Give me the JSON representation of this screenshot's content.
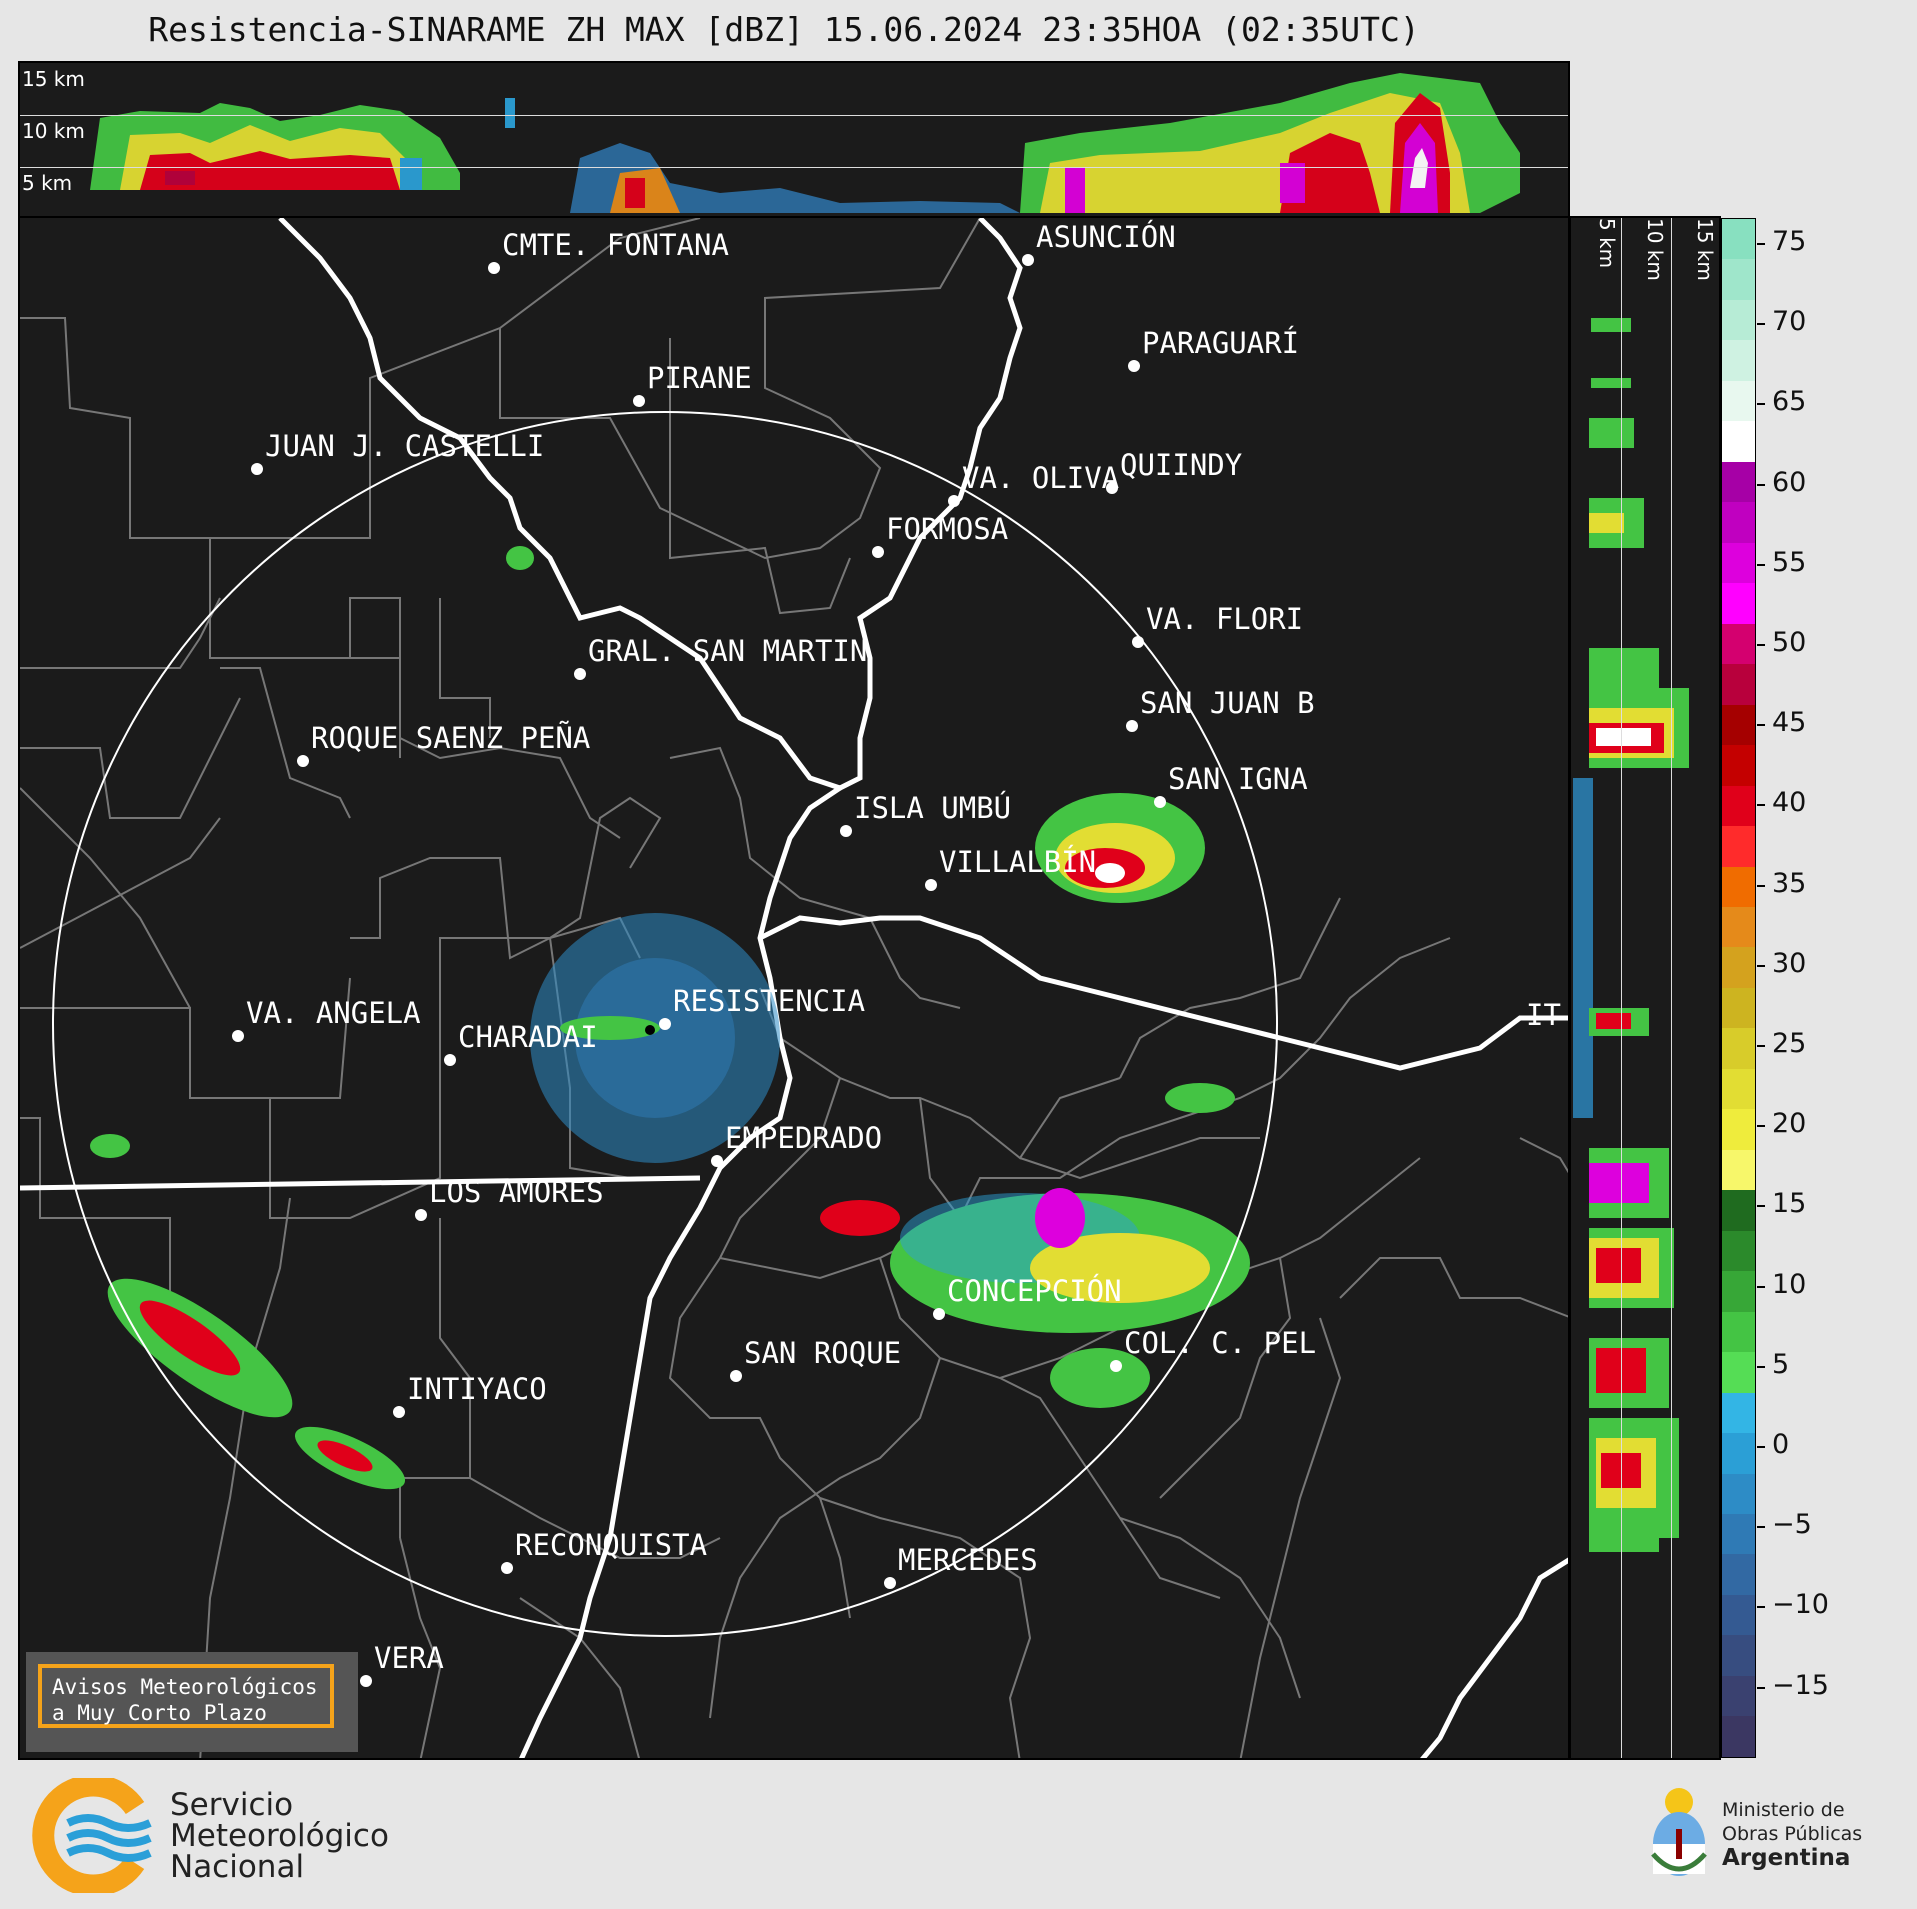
{
  "title": "Resistencia-SINARAME ZH MAX [dBZ] 15.06.2024 23:35HOA (02:35UTC)",
  "top_panel": {
    "height_labels": [
      "15 km",
      "10 km",
      "5 km"
    ]
  },
  "side_panel": {
    "height_labels": [
      "5 km",
      "10 km",
      "15 km"
    ]
  },
  "colorbar": {
    "unit": "dBZ",
    "ticks": [
      "75",
      "70",
      "65",
      "60",
      "55",
      "50",
      "45",
      "40",
      "35",
      "30",
      "25",
      "20",
      "15",
      "10",
      "5",
      "0",
      "−5",
      "−10",
      "−15"
    ],
    "colors_top_to_bottom": [
      "#88e0c0",
      "#9fe6cb",
      "#b7ecd6",
      "#cff2e2",
      "#e8f8ef",
      "#ffffff",
      "#a600a6",
      "#c000c0",
      "#dd00dd",
      "#ff00ff",
      "#d4006f",
      "#b8003c",
      "#a50000",
      "#c40000",
      "#e0001a",
      "#ff2b2b",
      "#f06c00",
      "#e58a1a",
      "#d4a21e",
      "#cdb420",
      "#d8cc2a",
      "#e2dd33",
      "#efec3c",
      "#f7f76a",
      "#1f6b1f",
      "#2b8a2b",
      "#37a737",
      "#44c444",
      "#55dd55",
      "#33b5e5",
      "#2b9fd6",
      "#2d8cc6",
      "#2f7ab5",
      "#3269a3",
      "#345a92",
      "#374d80",
      "#3a4170",
      "#3b3762"
    ]
  },
  "cities": [
    {
      "name": "CMTE. FONTANA"
    },
    {
      "name": "ASUNCIÓN"
    },
    {
      "name": "PIRANE"
    },
    {
      "name": "PARAGUARÍ"
    },
    {
      "name": "JUAN J. CASTELLI"
    },
    {
      "name": "VA. OLIVA"
    },
    {
      "name": "QUIINDY"
    },
    {
      "name": "FORMOSA"
    },
    {
      "name": "VA. FLORI"
    },
    {
      "name": "GRAL. SAN MARTIN"
    },
    {
      "name": "SAN JUAN B"
    },
    {
      "name": "ROQUE SAENZ PEÑA"
    },
    {
      "name": "SAN IGNA"
    },
    {
      "name": "ISLA UMBÚ"
    },
    {
      "name": "VILLALBÍN"
    },
    {
      "name": "RESISTENCIA"
    },
    {
      "name": "IT"
    },
    {
      "name": "VA. ANGELA"
    },
    {
      "name": "CHARADAI"
    },
    {
      "name": "EMPEDRADO"
    },
    {
      "name": "LOS AMORES"
    },
    {
      "name": "CONCEPCIÓN"
    },
    {
      "name": "SAN ROQUE"
    },
    {
      "name": "COL. C. PEL"
    },
    {
      "name": "INTIYACO"
    },
    {
      "name": "RECONQUISTA"
    },
    {
      "name": "MERCEDES"
    },
    {
      "name": "VERA"
    }
  ],
  "notice": {
    "line1": "Avisos Meteorológicos",
    "line2": "a Muy Corto Plazo"
  },
  "footer": {
    "smn": {
      "line1": "Servicio",
      "line2": "Meteorológico",
      "line3": "Nacional"
    },
    "ministry": {
      "line1": "Ministerio de",
      "line2": "Obras Públicas",
      "line3": "Argentina"
    }
  }
}
